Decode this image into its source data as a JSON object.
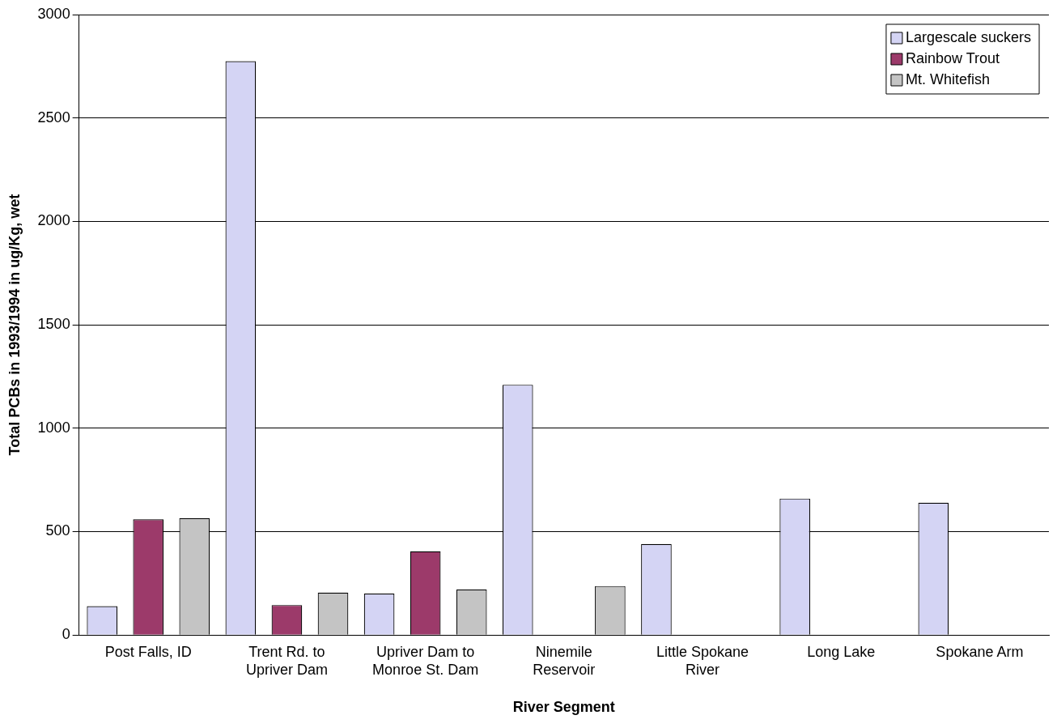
{
  "chart_data": {
    "type": "bar",
    "xlabel": "River Segment",
    "ylabel": "Total PCBs in 1993/1994 in ug/Kg, wet",
    "categories": [
      "Post Falls, ID",
      "Trent Rd. to Upriver Dam",
      "Upriver Dam to Monroe St. Dam",
      "Ninemile Reservoir",
      "Little Spokane River",
      "Long Lake",
      "Spokane Arm"
    ],
    "series": [
      {
        "name": "Largescale suckers",
        "color": "#d4d4f4",
        "values": [
          140,
          2775,
          200,
          1210,
          440,
          660,
          640
        ]
      },
      {
        "name": "Rainbow Trout",
        "color": "#9c3a6a",
        "values": [
          560,
          145,
          405,
          null,
          null,
          null,
          null
        ]
      },
      {
        "name": "Mt. Whitefish",
        "color": "#c4c4c4",
        "values": [
          565,
          205,
          220,
          237,
          null,
          null,
          null
        ]
      }
    ],
    "ylim": [
      0,
      3000
    ],
    "yticks": [
      0,
      500,
      1000,
      1500,
      2000,
      2500,
      3000
    ],
    "grid": "y",
    "legend": "top right"
  }
}
